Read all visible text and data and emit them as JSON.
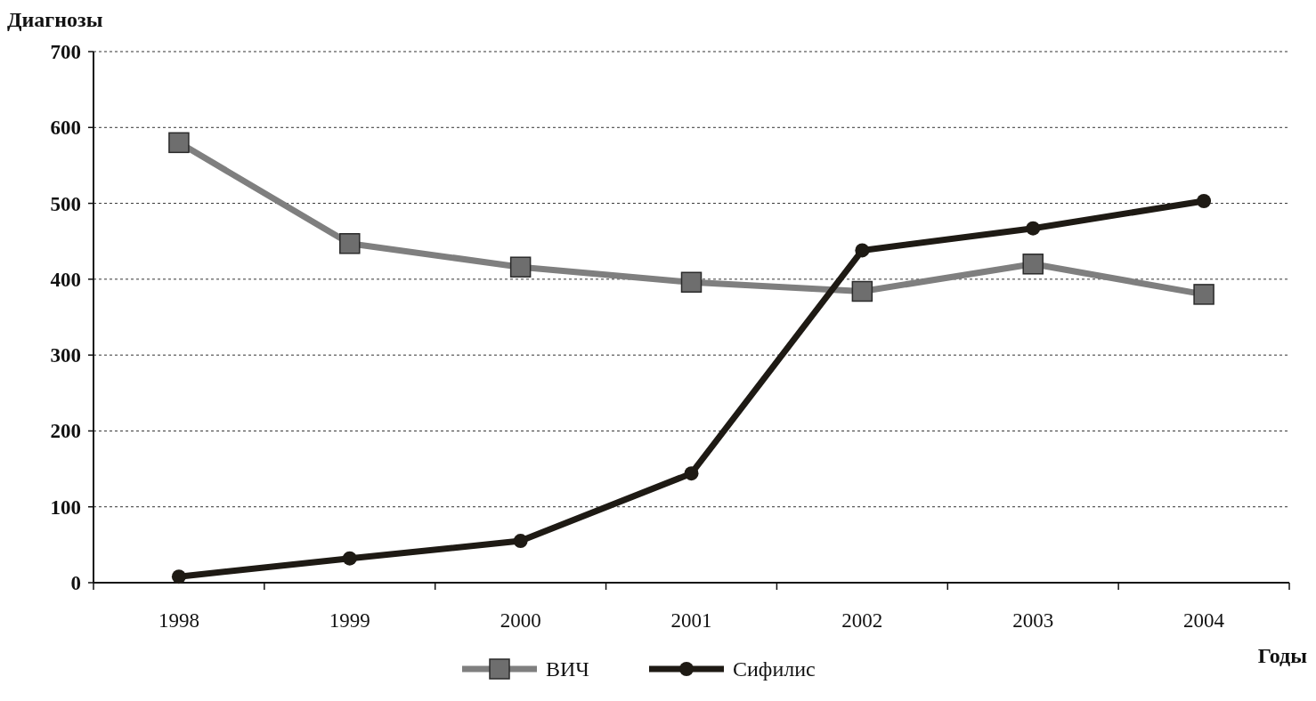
{
  "chart_data": {
    "type": "line",
    "xlabel": "Годы",
    "ylabel": "Диагнозы",
    "categories": [
      "1998",
      "1999",
      "2000",
      "2001",
      "2002",
      "2003",
      "2004"
    ],
    "series": [
      {
        "name": "ВИЧ",
        "color": "#7f7f7f",
        "marker": "square",
        "values": [
          580,
          447,
          416,
          396,
          384,
          420,
          380
        ]
      },
      {
        "name": "Сифилис",
        "color": "#1e1a14",
        "marker": "circle",
        "values": [
          8,
          32,
          55,
          144,
          438,
          467,
          503
        ]
      }
    ],
    "ylim": [
      0,
      700
    ],
    "yticks": [
      0,
      100,
      200,
      300,
      400,
      500,
      600,
      700
    ],
    "grid": "y",
    "legend": "bottom"
  }
}
